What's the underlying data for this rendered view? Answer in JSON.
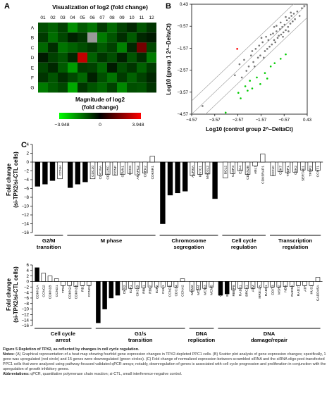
{
  "colors": {
    "high": "#ff0000",
    "mid": "#000000",
    "low": "#00ff00",
    "missing": "#999999",
    "bar": "#000000",
    "scatter_point": "#777777",
    "diag_line": "#999999"
  },
  "panel_a": {
    "letter": "A",
    "title": "Visualization of log2 (fold change)",
    "columns": [
      "01",
      "02",
      "03",
      "04",
      "05",
      "06",
      "07",
      "08",
      "09",
      "10",
      "11",
      "12"
    ],
    "rows": [
      "A",
      "B",
      "C",
      "D",
      "E",
      "F",
      "G"
    ],
    "legend_title_1": "Magnitude of log2",
    "legend_title_2": "(fold change)",
    "legend_min": "−3.948",
    "legend_mid": "0",
    "legend_max": "3.948",
    "matrix": [
      [
        -1.2,
        -1.5,
        -1.0,
        -2.2,
        -1.4,
        -1.8,
        -0.9,
        -1.6,
        -1.0,
        -0.6,
        -1.3,
        -0.8
      ],
      [
        -0.9,
        -1.7,
        -1.1,
        -0.5,
        -0.8,
        null,
        -1.9,
        -1.3,
        -0.7,
        -1.4,
        -0.6,
        -0.4
      ],
      [
        -1.6,
        -0.7,
        -1.8,
        -1.5,
        -1.2,
        -0.9,
        -1.4,
        -1.0,
        -2.0,
        -0.6,
        1.8,
        -1.1
      ],
      [
        -0.4,
        -1.0,
        -1.3,
        -0.6,
        3.0,
        -1.5,
        -0.8,
        -1.2,
        -0.5,
        -1.3,
        -0.7,
        -1.9
      ],
      [
        -1.1,
        -0.6,
        -1.4,
        -2.4,
        -0.9,
        -1.0,
        -1.6,
        -0.4,
        -1.2,
        -0.8,
        -1.5,
        -0.9
      ],
      [
        -0.8,
        -1.3,
        -0.7,
        -1.1,
        -1.6,
        -0.5,
        -1.2,
        -1.8,
        -0.9,
        -1.5,
        -1.0,
        -0.6
      ],
      [
        -1.9,
        -1.4,
        -1.1,
        -2.6,
        -0.8,
        -1.3,
        -1.6,
        -1.0,
        -2.1,
        -1.2,
        -1.3,
        -0.8
      ]
    ]
  },
  "panel_b": {
    "letter": "B",
    "ylabel": "Log10 (group 1 2^–DeltaCt)",
    "xlabel": "Log10 (control group 2^–DeltaCt)",
    "ticks": [
      -4.57,
      -3.57,
      -2.57,
      -1.57,
      -0.57,
      0.43
    ],
    "tick_labels": [
      "−4.57",
      "−3.57",
      "−2.57",
      "−1.57",
      "−0.57",
      "0.43"
    ]
  },
  "panel_c": {
    "letter": "C",
    "ylabel_1": "Fold change",
    "ylabel_2": "(si-TPX2/si-CTL cells)"
  },
  "caption": {
    "title": "Figure 5 Depletion of TPX2, as reflected by changes in cell cycle regulation.",
    "notes_label": "Notes:",
    "notes": "(A) Graphical representation of a heat map showing fourfold gene expression changes in TPX2-depleted PPC1 cells. (B) Scatter plot analysis of gene expression changes; specifically, 1 gene was upregulated (red circle) and 15 genes were downregulated (green circles). (C) Fold change of normalized expression between scrambled siRNA and the siRNA oligo pool-transfected PPC1 cells that were analyzed using pathway-focused validated qPCR arrays; notably, downregulation of genes is associated with cell cycle progression and proliferation in conjunction with the upregulation of growth inhibitory genes.",
    "abbr_label": "Abbreviations:",
    "abbr": "qPCR, quantitative polymerase chain reaction; si-CTL, small interference-negative control."
  },
  "chart_data": [
    {
      "type": "heatmap",
      "title": "Visualization of log2 (fold change)",
      "x": [
        "01",
        "02",
        "03",
        "04",
        "05",
        "06",
        "07",
        "08",
        "09",
        "10",
        "11",
        "12"
      ],
      "y": [
        "A",
        "B",
        "C",
        "D",
        "E",
        "F",
        "G"
      ],
      "range": [
        -3.948,
        3.948
      ]
    },
    {
      "type": "scatter",
      "xlabel": "Log10 (control group 2^–DeltaCt)",
      "ylabel": "Log10 (group 1 2^–DeltaCt)",
      "xlim": [
        -4.57,
        0.43
      ],
      "ylim": [
        -4.57,
        0.43
      ],
      "series": [
        {
          "name": "unchanged",
          "color": "#777777",
          "points": [
            [
              -4.1,
              -4.2
            ],
            [
              -2.3,
              -2.1
            ],
            [
              -2.1,
              -2.4
            ],
            [
              -2.0,
              -1.9
            ],
            [
              -1.9,
              -2.2
            ],
            [
              -1.8,
              -1.6
            ],
            [
              -1.7,
              -2.0
            ],
            [
              -1.6,
              -1.9
            ],
            [
              -1.5,
              -1.3
            ],
            [
              -1.4,
              -1.7
            ],
            [
              -1.3,
              -1.6
            ],
            [
              -1.25,
              -1.2
            ],
            [
              -1.2,
              -1.5
            ],
            [
              -1.1,
              -1.4
            ],
            [
              -1.05,
              -0.9
            ],
            [
              -1.0,
              -1.2
            ],
            [
              -0.95,
              -1.3
            ],
            [
              -0.9,
              -0.8
            ],
            [
              -0.85,
              -1.1
            ],
            [
              -0.8,
              -1.0
            ],
            [
              -0.75,
              -0.7
            ],
            [
              -0.7,
              -0.95
            ],
            [
              -0.65,
              -0.6
            ],
            [
              -0.6,
              -0.85
            ],
            [
              -0.55,
              -0.5
            ],
            [
              -0.5,
              -0.75
            ],
            [
              -0.45,
              -0.3
            ],
            [
              -0.4,
              -0.6
            ],
            [
              -0.35,
              -0.2
            ],
            [
              -0.3,
              -0.45
            ],
            [
              -0.25,
              -0.1
            ],
            [
              -0.2,
              -0.35
            ],
            [
              -0.15,
              0.0
            ],
            [
              -0.1,
              -0.25
            ],
            [
              0.0,
              0.1
            ],
            [
              0.1,
              -0.1
            ],
            [
              0.2,
              0.25
            ],
            [
              0.3,
              0.35
            ],
            [
              -2.5,
              -2.3
            ],
            [
              -2.2,
              -2.6
            ],
            [
              -1.95,
              -1.7
            ],
            [
              -1.65,
              -1.45
            ],
            [
              -1.35,
              -1.05
            ],
            [
              -1.15,
              -0.95
            ],
            [
              -0.9,
              -0.55
            ],
            [
              -0.72,
              -0.4
            ],
            [
              -0.5,
              -0.15
            ],
            [
              -0.28,
              0.05
            ],
            [
              -2.7,
              -2.8
            ],
            [
              -2.4,
              -2.9
            ],
            [
              -1.85,
              -2.4
            ],
            [
              -1.45,
              -2.0
            ],
            [
              -1.55,
              -1.1
            ],
            [
              -1.0,
              -0.6
            ],
            [
              -0.62,
              -1.05
            ],
            [
              -0.38,
              -0.8
            ]
          ]
        },
        {
          "name": "upregulated",
          "color": "#ff0000",
          "points": [
            [
              -2.6,
              -1.6
            ]
          ]
        },
        {
          "name": "downregulated",
          "color": "#00cc00",
          "points": [
            [
              -3.1,
              -4.5
            ],
            [
              -2.55,
              -3.6
            ],
            [
              -2.45,
              -3.85
            ],
            [
              -2.25,
              -3.3
            ],
            [
              -2.15,
              -3.5
            ],
            [
              -2.05,
              -3.05
            ],
            [
              -1.95,
              -3.4
            ],
            [
              -1.75,
              -2.9
            ],
            [
              -1.6,
              -3.2
            ],
            [
              -1.4,
              -2.7
            ],
            [
              -1.3,
              -2.95
            ],
            [
              -1.15,
              -2.4
            ],
            [
              -0.98,
              -2.25
            ],
            [
              -0.72,
              -2.05
            ],
            [
              -0.5,
              -1.85
            ]
          ]
        }
      ]
    },
    {
      "type": "bar",
      "ylabel": "Fold change (si-TPX2/si-CTL cells)",
      "ylim": [
        -16,
        4
      ],
      "yticks": [
        4,
        2,
        0,
        -2,
        -4,
        -6,
        -8,
        -10,
        -12,
        -14,
        -16
      ],
      "categories": [
        "CDKN3",
        "GTSE1",
        "WEE1",
        "CCNH",
        "CDK1",
        "CCNB1",
        "CCNB2",
        "CDC20",
        "CDC25A",
        "CDC25C",
        "CCNF",
        "STMN1",
        "CDC6",
        "ANAPC2",
        "CHEK2",
        "CDK5R1",
        "BRCA1",
        "BRCA2",
        "CDC16",
        "MAD2L1",
        "AURKA",
        "KNTC1",
        "MAD2L2",
        "MKI67",
        "BCL2",
        "CASP3",
        "E2F4",
        "CDKN2B",
        "ABL1",
        "CDK5RAP1",
        "CCNC",
        "CDK7",
        "TFDP1",
        "CDK2",
        "SERTAD1",
        "TFDP2",
        "CCNT1"
      ],
      "values": [
        -5.5,
        -5.0,
        -4.2,
        -3.8,
        -5.8,
        -5.0,
        -4.5,
        -3.8,
        -3.0,
        -2.8,
        -3.0,
        -2.8,
        -2.6,
        -2.9,
        -2.5,
        1.3,
        -14.0,
        -7.5,
        -7.0,
        -6.6,
        -3.1,
        -2.8,
        -2.7,
        -8.3,
        -3.6,
        -2.6,
        -2.0,
        -2.8,
        -0.9,
        1.8,
        -3.1,
        -2.2,
        -2.4,
        -2.3,
        -1.8,
        -2.0,
        -1.9
      ],
      "groups": [
        {
          "label": "G2/M transition",
          "count": 4
        },
        {
          "label": "M phase",
          "count": 12
        },
        {
          "label": "Chromosome segregation",
          "count": 8
        },
        {
          "label": "Cell cycle regulation",
          "count": 6
        },
        {
          "label": "Transcription regulation",
          "count": 7
        }
      ]
    },
    {
      "type": "bar",
      "ylabel": "Fold change (si-TPX2/si-CTL cells)",
      "ylim": [
        -16,
        6
      ],
      "yticks": [
        6,
        4,
        2,
        0,
        -2,
        -4,
        -6,
        -8,
        -10,
        -12,
        -14,
        -16
      ],
      "categories": [
        "CDKN1A",
        "CCNG2",
        "CDKN1B",
        "CCND1",
        "TP53",
        "CDKN2A",
        "CDKN1B",
        "RB1",
        "CCND3",
        "CCNE1",
        "CDK4",
        "CDK6",
        "CDK2",
        "CKS2",
        "E2F1",
        "CKS1B",
        "RBL1",
        "RBL2",
        "E2F2",
        "CUL1",
        "CCND2",
        "CDC34",
        "CCNA2",
        "MCM2",
        "MCM4",
        "MCM3",
        "MCM5",
        "CHEK1",
        "BRCA2",
        "RBBP8",
        "RAD51",
        "BRCA1",
        "ATM",
        "MRE11A",
        "RAD51",
        "DDIT3",
        "MSH2",
        "NBN",
        "RAD9A",
        "RAD17",
        "ATR",
        "HUS1",
        "GADD45A"
      ],
      "values": [
        5.0,
        3.0,
        2.0,
        1.0,
        -1.5,
        -1.5,
        -1.8,
        -1.5,
        -1.5,
        -15.0,
        -10.0,
        -6.0,
        -5.0,
        -3.0,
        -2.5,
        -2.5,
        -2.2,
        -2.0,
        -2.0,
        -2.0,
        -1.8,
        -2.0,
        1.0,
        -3.5,
        -3.0,
        -2.5,
        -2.0,
        -5.0,
        -4.5,
        -3.0,
        -2.5,
        -2.5,
        -2.5,
        -2.2,
        -2.2,
        -2.0,
        -2.0,
        -1.8,
        -1.8,
        -1.5,
        -1.5,
        -1.5,
        1.5
      ],
      "groups": [
        {
          "label": "Cell cycle arrest",
          "count": 9
        },
        {
          "label": "G1/s transition",
          "count": 14
        },
        {
          "label": "DNA replication",
          "count": 4
        },
        {
          "label": "DNA damage/repair",
          "count": 16
        }
      ]
    }
  ]
}
